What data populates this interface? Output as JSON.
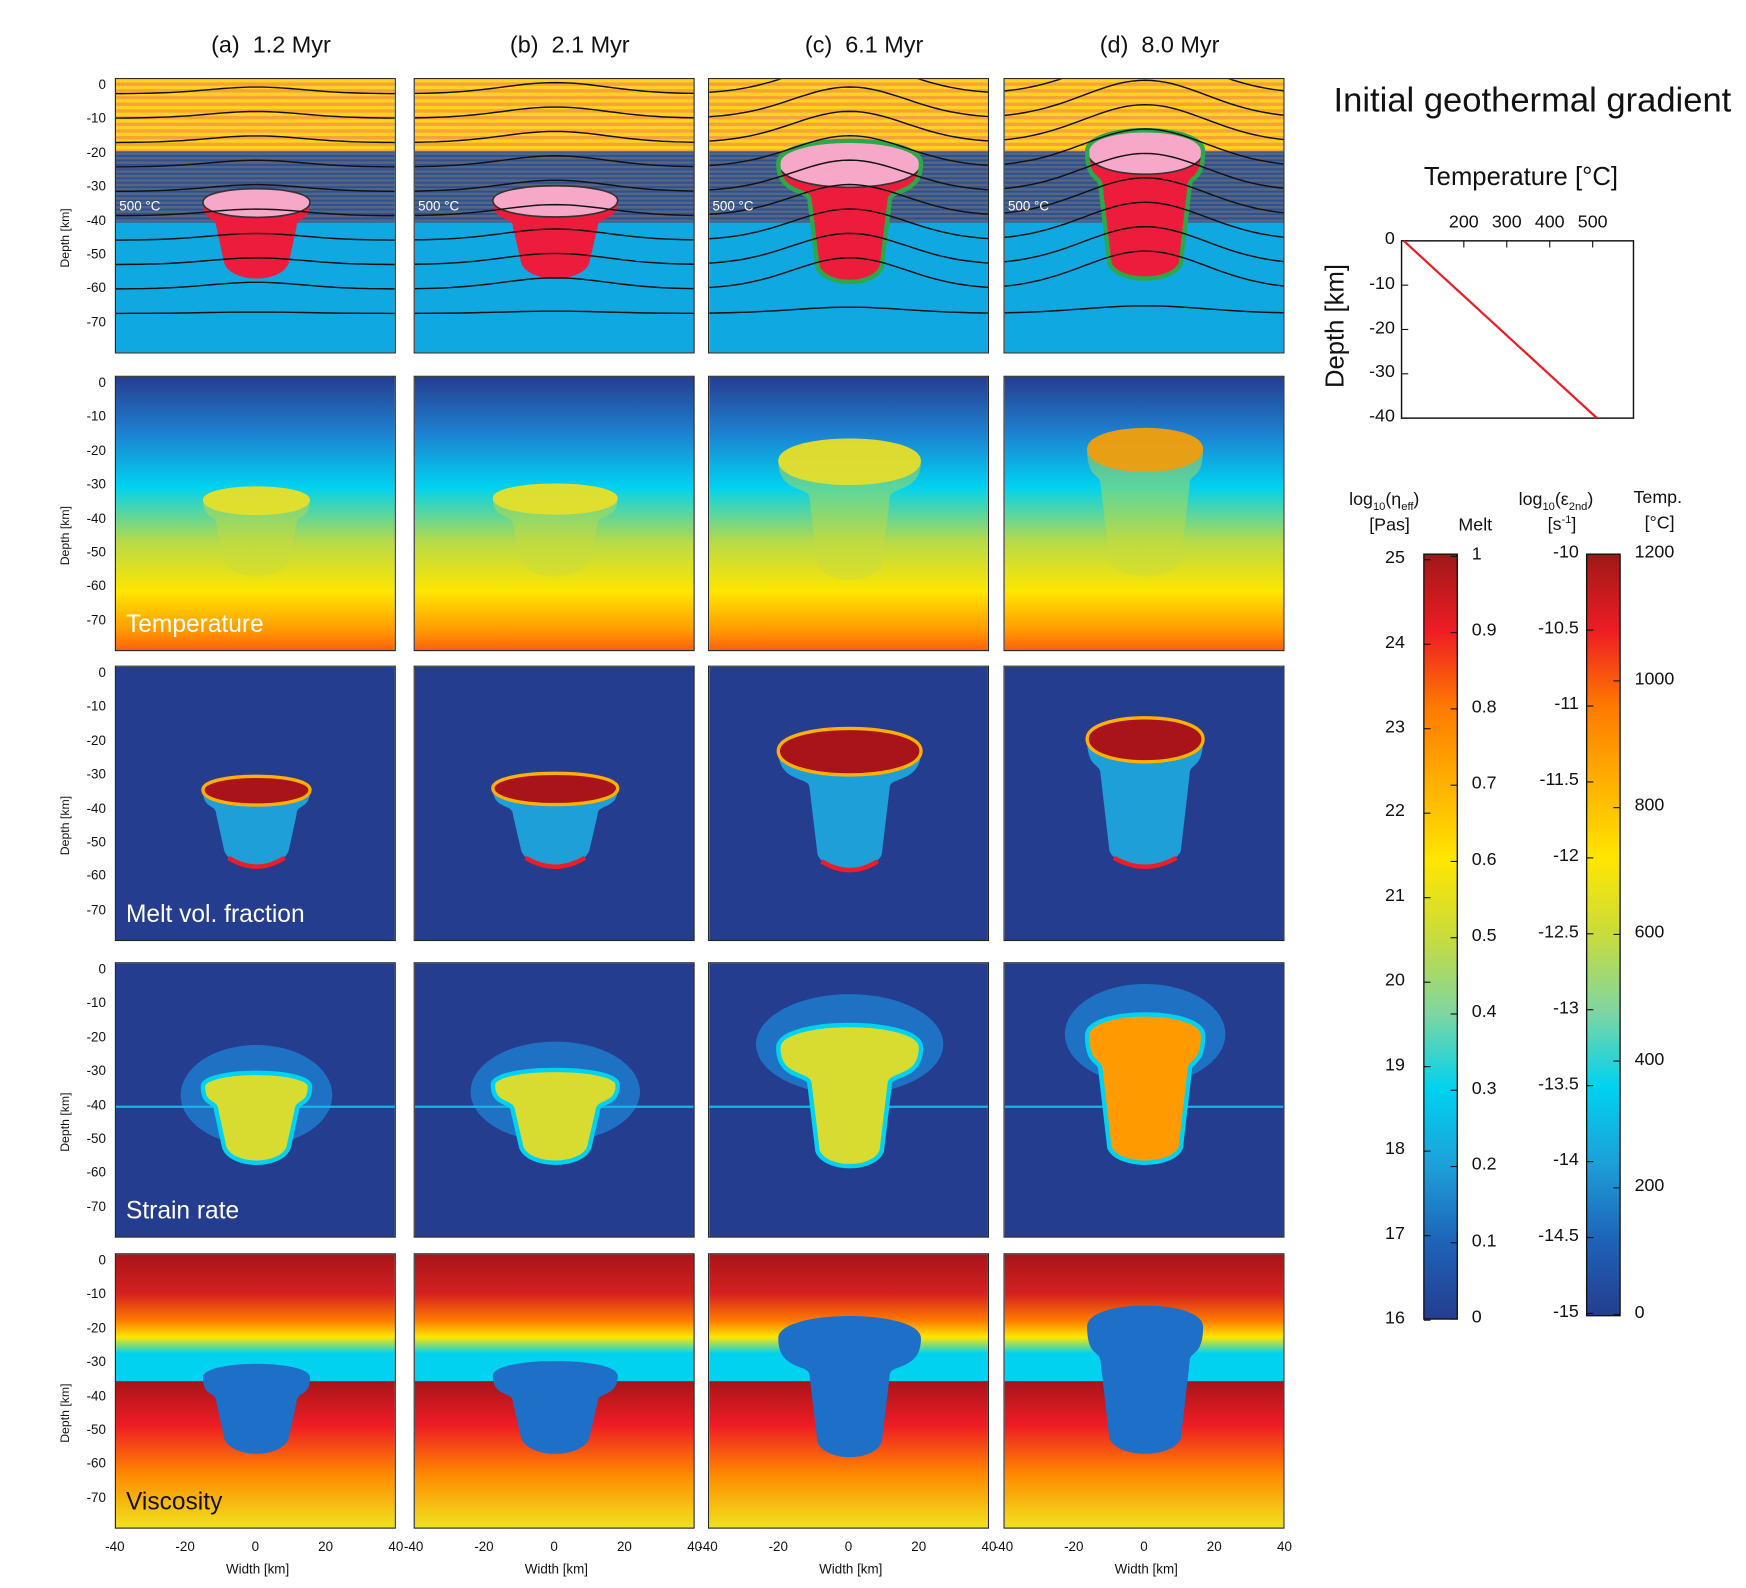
{
  "columns": [
    {
      "label": "(a)  1.2 Myr"
    },
    {
      "label": "(b)  2.1 Myr"
    },
    {
      "label": "(c)  6.1 Myr"
    },
    {
      "label": "(d)  8.0 Myr"
    }
  ],
  "rows": [
    {
      "label": "",
      "isotherm_label": "500 °C"
    },
    {
      "label": "Temperature"
    },
    {
      "label": "Melt vol. fraction"
    },
    {
      "label": "Strain rate"
    },
    {
      "label": "Viscosity"
    }
  ],
  "depth_axis": {
    "label": "Depth [km]",
    "ticks": [
      "0",
      "-10",
      "-20",
      "-30",
      "-40",
      "-50",
      "-60",
      "-70"
    ]
  },
  "width_axis": {
    "label": "Width [km]",
    "ticks": [
      "-40",
      "-20",
      "0",
      "20",
      "40"
    ]
  },
  "colorbars": {
    "viscosity": {
      "title": "log10(ηeff)",
      "title_base": "log",
      "title_sub": "10",
      "title_rest": "(η",
      "title_sub2": "eff",
      "title_end": ")",
      "unit": "[Pas]",
      "ticks": [
        "25",
        "24",
        "23",
        "22",
        "21",
        "20",
        "19",
        "18",
        "17",
        "16"
      ]
    },
    "melt": {
      "title": "Melt",
      "ticks": [
        "1",
        "0.9",
        "0.8",
        "0.7",
        "0.6",
        "0.5",
        "0.4",
        "0.3",
        "0.2",
        "0.1",
        "0"
      ]
    },
    "strain": {
      "title_base": "log",
      "title_sub": "10",
      "title_rest": "(ε",
      "title_sub2": "2nd",
      "title_end": ")",
      "unit_base": "[s",
      "unit_sup": "-1",
      "unit_end": "]",
      "ticks": [
        "-10",
        "-10.5",
        "-11",
        "-11.5",
        "-12",
        "-12.5",
        "-13",
        "-13.5",
        "-14",
        "-14.5",
        "-15"
      ]
    },
    "temperature": {
      "title": "Temp.",
      "unit": "[°C]",
      "ticks": [
        "1200",
        "1000",
        "800",
        "600",
        "400",
        "200",
        "0"
      ]
    },
    "colors": [
      "#253d8f",
      "#1e63b8",
      "#1e9fd8",
      "#00d2f0",
      "#7fd6a0",
      "#c8dc3c",
      "#ffe600",
      "#ffb000",
      "#ff7a00",
      "#ee1c24",
      "#9e1818"
    ]
  },
  "chart_data": {
    "type": "line",
    "title": "Initial geothermal gradient",
    "xlabel": "Temperature [°C]",
    "ylabel": "Depth [km]",
    "x_ticks": [
      200,
      300,
      400,
      500
    ],
    "y_ticks": [
      0,
      -10,
      -20,
      -30,
      -40
    ],
    "xlim": [
      55,
      595
    ],
    "ylim": [
      -40,
      0
    ],
    "x_axis_position": "top",
    "grid": false,
    "series": [
      {
        "x": [
          60,
          510
        ],
        "y": [
          0,
          -40
        ],
        "color": "#ee1c24"
      }
    ]
  }
}
